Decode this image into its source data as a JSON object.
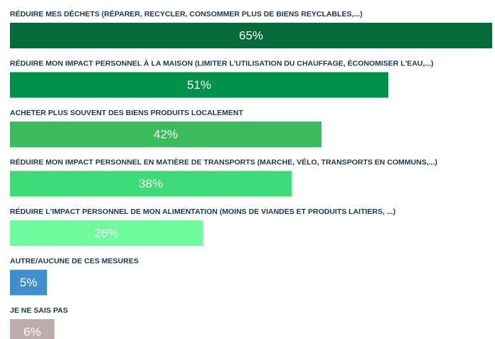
{
  "chart_data": {
    "type": "hbar",
    "categories": [
      "RÉDUIRE MES DÉCHETS (RÉPARER, RECYCLER, CONSOMMER PLUS DE BIENS REYCLABLES,...)",
      "RÉDUIRE MON IMPACT PERSONNEL À LA MAISON (LIMITER L'UTILISATION DU CHAUFFAGE, ÉCONOMISER L'EAU,...)",
      "ACHETER PLUS SOUVENT DES BIENS PRODUITS LOCALEMENT",
      "RÉDUIRE MON IMPACT PERSONNEL EN MATIÈRE DE TRANSPORTS (MARCHE, VÉLO, TRANSPORTS EN COMMUNS,...)",
      "RÉDUIRE L'IMPACT PERSONNEL DE MON ALIMENTATION (MOINS DE VIANDES ET PRODUITS LAITIERS, ...)",
      "AUTRE/AUCUNE DE CES MESURES",
      "JE NE SAIS PAS"
    ],
    "values": [
      65,
      51,
      42,
      38,
      26,
      5,
      6
    ],
    "value_labels": [
      "65%",
      "51%",
      "42%",
      "38%",
      "26%",
      "5%",
      "6%"
    ],
    "colors": [
      "#046b38",
      "#00914a",
      "#3bbb5c",
      "#3ddb79",
      "#6efc9f",
      "#3f8fcf",
      "#bfadad"
    ],
    "xlim": [
      0,
      65
    ]
  }
}
